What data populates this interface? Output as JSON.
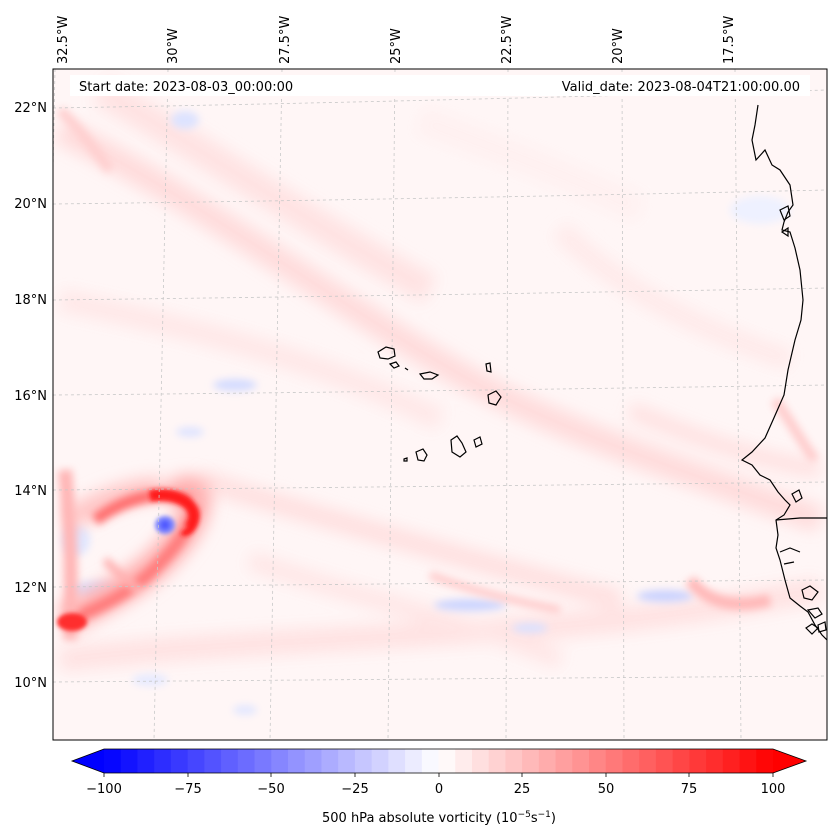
{
  "map": {
    "header": {
      "start_date": "Start date: 2023-08-03_00:00:00",
      "valid_date": "Valid_date: 2023-08-04T21:00:00.00"
    },
    "lon_labels": [
      "32.5°W",
      "30°W",
      "27.5°W",
      "25°W",
      "22.5°W",
      "20°W",
      "17.5°W"
    ],
    "lat_labels": [
      "22°N",
      "20°N",
      "18°N",
      "16°N",
      "14°N",
      "12°N",
      "10°N"
    ],
    "colorbar": {
      "ticks": [
        "−100",
        "−75",
        "−50",
        "−25",
        "0",
        "25",
        "50",
        "75",
        "100"
      ],
      "title": "500 hPa absolute vorticity (10",
      "title_unit_a": "−5",
      "title_unit_mid": "s",
      "title_unit_b": "−1",
      "title_close": ")",
      "min": -100,
      "max": 100,
      "levels": 41
    },
    "colors": {
      "negative": "#0000ff",
      "positive": "#ff0000",
      "neutral": "#ffffff",
      "coast": "#000000",
      "grid": "#c8c8c8"
    },
    "features": [
      "cabo-verde-islands",
      "west-africa-coastline",
      "vorticity-maximum"
    ]
  }
}
